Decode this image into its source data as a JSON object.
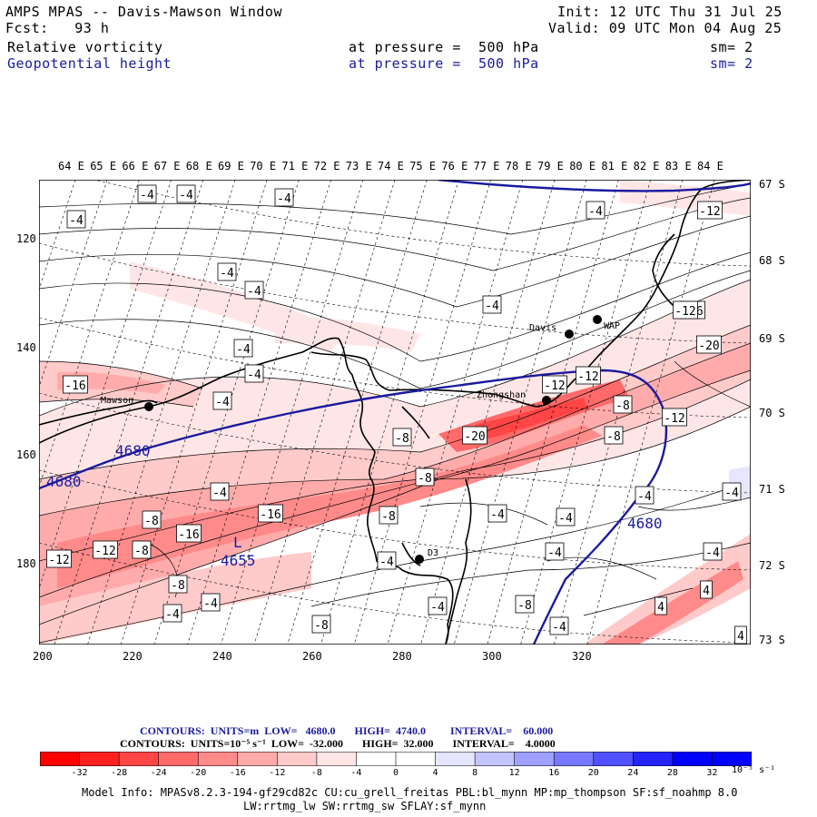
{
  "header": {
    "title": "AMPS MPAS -- Davis-Mawson Window",
    "init": "Init: 12 UTC Thu 31 Jul 25",
    "fcst": "Fcst:   93 h",
    "valid": "Valid: 09 UTC Mon 04 Aug 25",
    "field1": {
      "name": "Relative vorticity",
      "pressure": "at pressure =  500 hPa",
      "sm": "sm= 2"
    },
    "field2": {
      "name": "Geopotential height",
      "pressure": "at pressure =  500 hPa",
      "sm": "sm= 2"
    }
  },
  "map": {
    "top_lon_labels": [
      "64 E",
      "65 E",
      "66 E",
      "67 E",
      "68 E",
      "69 E",
      "70 E",
      "71 E",
      "72 E",
      "73 E",
      "74 E",
      "75 E",
      "76 E",
      "77 E",
      "78 E",
      "79 E",
      "80 E",
      "81 E",
      "82 E",
      "83 E",
      "84 E"
    ],
    "right_lat_labels": [
      "67 S",
      "68 S",
      "69 S",
      "70 S",
      "71 S",
      "72 S",
      "73 S"
    ],
    "left_grid_labels": [
      "120",
      "140",
      "160",
      "180"
    ],
    "bottom_grid_labels": [
      "200",
      "220",
      "240",
      "260",
      "280",
      "300",
      "320"
    ],
    "stations": [
      {
        "name": "Mawson"
      },
      {
        "name": "Davis"
      },
      {
        "name": "WAP"
      },
      {
        "name": "Zhongshan"
      },
      {
        "name": "D3"
      }
    ],
    "height_labels": [
      "4680",
      "4680",
      "4680",
      "4655"
    ],
    "low_marker": "L",
    "vorticity_labels": [
      "-4",
      "-4",
      "-4",
      "-4",
      "-4",
      "-4",
      "-4",
      "-4",
      "-4",
      "-4",
      "-4",
      "-12",
      "-16",
      "-12",
      "-16",
      "-20",
      "-12",
      "-8",
      "-20",
      "-8",
      "-8",
      "-12",
      "-4",
      "-16",
      "-8",
      "-16",
      "-12",
      "-8",
      "-12",
      "-8",
      "-4",
      "-4",
      "-8",
      "-8",
      "-4",
      "-4",
      "-4",
      "-8",
      "-4",
      "-4",
      "-4",
      "-8",
      "-4",
      "-4",
      "4",
      "4",
      "4",
      "-4",
      "-12"
    ]
  },
  "contours_info": {
    "line1": "CONTOURS:  UNITS=m  LOW=   4680.0       HIGH=  4740.0         INTERVAL=    60.000",
    "line2": "CONTOURS:  UNITS=10⁻⁵ s⁻¹  LOW=  -32.000       HIGH=  32.000       INTERVAL=    4.0000"
  },
  "colorbar": {
    "colors": [
      "#ff0000",
      "#ff2020",
      "#ff4545",
      "#ff6a6a",
      "#ff8a8a",
      "#ffabab",
      "#ffcaca",
      "#ffe6e6",
      "#ffffff",
      "#ffffff",
      "#e6e6ff",
      "#c4c4ff",
      "#a0a0ff",
      "#7878ff",
      "#5050ff",
      "#2424ff",
      "#0000ff",
      "#0000ff"
    ],
    "labels": [
      "-32",
      "-28",
      "-24",
      "-20",
      "-16",
      "-12",
      "-8",
      "-4",
      "0",
      "4",
      "8",
      "12",
      "16",
      "20",
      "24",
      "28",
      "32"
    ],
    "unit": "10⁻⁵ s⁻¹"
  },
  "model_info": {
    "line1": "Model Info: MPASv8.2.3-194-gf29cd82c CU:cu_grell_freitas PBL:bl_mynn MP:mp_thompson SF:sf_noahmp 8.0",
    "line2": "LW:rrtmg_lw SW:rrtmg_sw SFLAY:sf_mynn"
  }
}
